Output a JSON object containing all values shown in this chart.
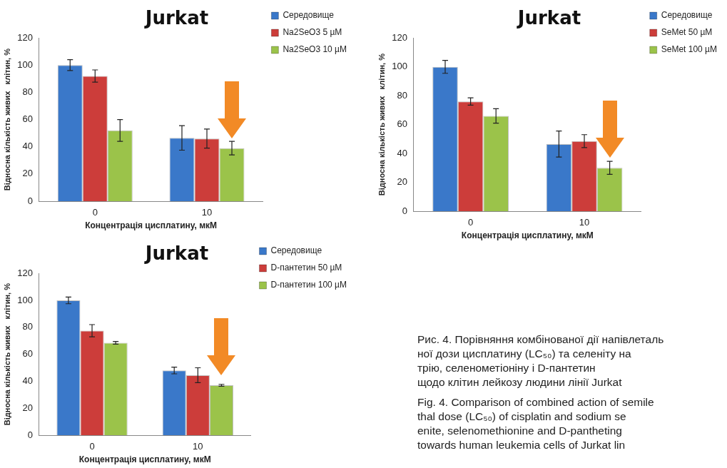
{
  "chart_data": [
    {
      "type": "bar",
      "title": "Jurkat",
      "xlabel": "Концентрація цисплатину, мкМ",
      "ylabel": "Відносна кількість живих   клітин, %",
      "categories": [
        "0",
        "10"
      ],
      "ylim": [
        0,
        120
      ],
      "yticks": [
        0,
        20,
        40,
        60,
        80,
        100,
        120
      ],
      "grid": false,
      "legend": "top right",
      "series": [
        {
          "name": "Середовище",
          "color": "#3a78c9",
          "values": [
            100,
            46.5
          ],
          "errors": [
            4,
            9
          ]
        },
        {
          "name": "Na2SeO3 5 µM",
          "color": "#cc3d3a",
          "values": [
            92,
            46
          ],
          "errors": [
            4.5,
            7
          ]
        },
        {
          "name": "Na2SeO3 10 µM",
          "color": "#9bc34a",
          "values": [
            52,
            39
          ],
          "errors": [
            8,
            5
          ]
        }
      ]
    },
    {
      "type": "bar",
      "title": "Jurkat",
      "xlabel": "Концентрація цисплатину, мкМ",
      "ylabel": "Відносна кількість живих   клітин, %",
      "categories": [
        "0",
        "10"
      ],
      "ylim": [
        0,
        120
      ],
      "yticks": [
        0,
        20,
        40,
        60,
        80,
        100,
        120
      ],
      "grid": false,
      "legend": "top right",
      "series": [
        {
          "name": "Середовище",
          "color": "#3a78c9",
          "values": [
            100,
            46.5
          ],
          "errors": [
            4.5,
            9
          ]
        },
        {
          "name": "SeMet 50 µM",
          "color": "#cc3d3a",
          "values": [
            76,
            48.5
          ],
          "errors": [
            2.5,
            4.5
          ]
        },
        {
          "name": "SeMet 100 µM",
          "color": "#9bc34a",
          "values": [
            66,
            30
          ],
          "errors": [
            5,
            4.5
          ]
        }
      ]
    },
    {
      "type": "bar",
      "title": "Jurkat",
      "xlabel": "Концентрація цисплатину, мкМ",
      "ylabel": "Відносна кількість живих   клітин, %",
      "categories": [
        "0",
        "10"
      ],
      "ylim": [
        0,
        120
      ],
      "yticks": [
        0,
        20,
        40,
        60,
        80,
        100,
        120
      ],
      "grid": false,
      "legend": "top right",
      "series": [
        {
          "name": "Середовище",
          "color": "#3a78c9",
          "values": [
            100,
            48
          ],
          "errors": [
            2.5,
            2.5
          ]
        },
        {
          "name": "D-пантетин 50 µM",
          "color": "#cc3d3a",
          "values": [
            77.5,
            44.5
          ],
          "errors": [
            4.5,
            5.5
          ]
        },
        {
          "name": "D-пантетин 100 µM",
          "color": "#9bc34a",
          "values": [
            68.5,
            37
          ],
          "errors": [
            1,
            0.7
          ]
        }
      ]
    },
    {
      "type": "other",
      "annotations": [
        "Рис. 4. Порівняння комбінованої дії напівлеталь",
        "ної дози цисплатину (LC₅₀) та селеніту на",
        "трію, селенометіоніну і D-пантетин",
        "щодо клітин лейкозу людини лінії Jurkat",
        "Fig. 4. Comparison of combined action of semile",
        "thal dose (LC₅₀) of cisplatin and sodium se",
        "enite, selenomethionine and D-pantheting",
        "towards human leukemia cells of Jurkat lin"
      ]
    }
  ]
}
